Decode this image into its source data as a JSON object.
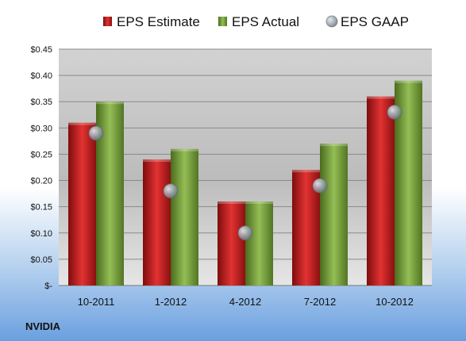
{
  "chart_data": {
    "type": "bar",
    "categories": [
      "10-2011",
      "1-2012",
      "4-2012",
      "7-2012",
      "10-2012"
    ],
    "series": [
      {
        "name": "EPS Estimate",
        "values": [
          0.31,
          0.24,
          0.16,
          0.22,
          0.36
        ],
        "color": "#cc1f1f",
        "kind": "bar"
      },
      {
        "name": "EPS Actual",
        "values": [
          0.35,
          0.26,
          0.16,
          0.27,
          0.39
        ],
        "color": "#76a13a",
        "kind": "bar"
      },
      {
        "name": "EPS GAAP",
        "values": [
          0.29,
          0.18,
          0.1,
          0.19,
          0.33
        ],
        "color": "#9aa3ad",
        "kind": "marker"
      }
    ],
    "ylim": [
      0,
      0.45
    ],
    "yticks": [
      0,
      0.05,
      0.1,
      0.15,
      0.2,
      0.25,
      0.3,
      0.35,
      0.4,
      0.45
    ],
    "ytick_labels": [
      "$-",
      "$0.05",
      "$0.10",
      "$0.15",
      "$0.20",
      "$0.25",
      "$0.30",
      "$0.35",
      "$0.40",
      "$0.45"
    ],
    "grid": true,
    "legend_position": "top"
  },
  "footer": {
    "label": "NVIDIA"
  }
}
